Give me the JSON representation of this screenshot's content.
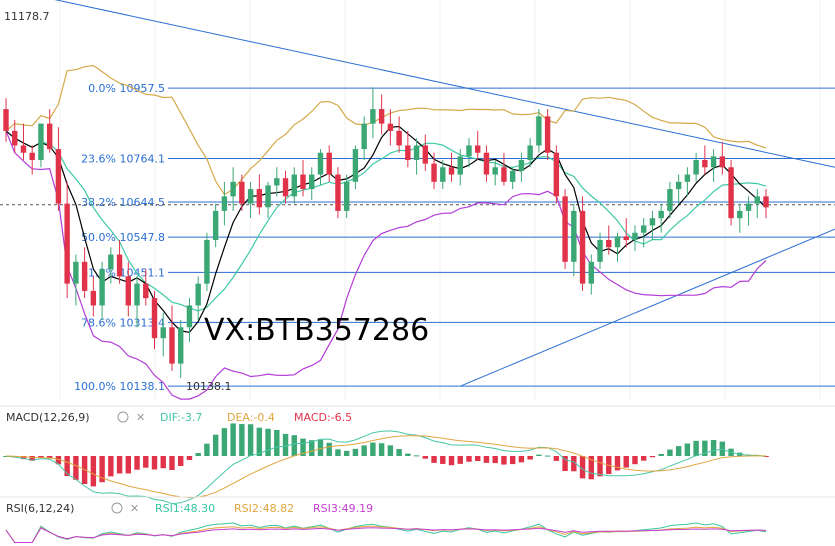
{
  "chart_data": {
    "type": "candlestick",
    "price_range": [
      10100,
      11200
    ],
    "top_price_label": "11178.7",
    "low_price_label": "10138.1",
    "fib_levels": [
      {
        "label": "0.0% 10957.5",
        "price": 10957.5
      },
      {
        "label": "23.6% 10764.1",
        "price": 10764.1
      },
      {
        "label": "38.2% 10644.5",
        "price": 10644.5
      },
      {
        "label": "50.0% 10547.8",
        "price": 10547.8
      },
      {
        "label": "61.8% 10451.1",
        "price": 10451.1
      },
      {
        "label": "78.6% 10313.4",
        "price": 10313.4
      },
      {
        "label": "100.0% 10138.1",
        "price": 10138.1
      }
    ],
    "current_price_dashed": 10637,
    "trendlines": [
      {
        "p1": [
          0,
          11230
        ],
        "p2": [
          160,
          10740
        ]
      },
      {
        "p1": [
          52,
          10138
        ],
        "p2": [
          160,
          10570
        ]
      }
    ],
    "candles_ohlc": [
      [
        10900,
        10930,
        10810,
        10840
      ],
      [
        10840,
        10870,
        10780,
        10800
      ],
      [
        10800,
        10860,
        10760,
        10780
      ],
      [
        10780,
        10800,
        10720,
        10760
      ],
      [
        10760,
        10860,
        10740,
        10860
      ],
      [
        10860,
        10900,
        10780,
        10790
      ],
      [
        10790,
        10850,
        10620,
        10640
      ],
      [
        10640,
        10700,
        10380,
        10420
      ],
      [
        10420,
        10500,
        10360,
        10480
      ],
      [
        10480,
        10520,
        10380,
        10400
      ],
      [
        10400,
        10440,
        10330,
        10360
      ],
      [
        10360,
        10480,
        10320,
        10460
      ],
      [
        10460,
        10520,
        10420,
        10500
      ],
      [
        10500,
        10540,
        10420,
        10440
      ],
      [
        10440,
        10480,
        10330,
        10360
      ],
      [
        10360,
        10440,
        10300,
        10420
      ],
      [
        10420,
        10460,
        10360,
        10380
      ],
      [
        10380,
        10400,
        10240,
        10270
      ],
      [
        10270,
        10340,
        10220,
        10300
      ],
      [
        10300,
        10360,
        10180,
        10200
      ],
      [
        10200,
        10320,
        10160,
        10300
      ],
      [
        10300,
        10380,
        10260,
        10360
      ],
      [
        10360,
        10440,
        10320,
        10420
      ],
      [
        10420,
        10560,
        10400,
        10540
      ],
      [
        10540,
        10640,
        10520,
        10620
      ],
      [
        10620,
        10700,
        10580,
        10660
      ],
      [
        10660,
        10740,
        10620,
        10700
      ],
      [
        10700,
        10720,
        10620,
        10640
      ],
      [
        10640,
        10700,
        10600,
        10680
      ],
      [
        10680,
        10720,
        10610,
        10630
      ],
      [
        10630,
        10700,
        10600,
        10690
      ],
      [
        10690,
        10740,
        10660,
        10710
      ],
      [
        10710,
        10730,
        10640,
        10660
      ],
      [
        10660,
        10740,
        10640,
        10720
      ],
      [
        10720,
        10760,
        10660,
        10680
      ],
      [
        10680,
        10740,
        10650,
        10720
      ],
      [
        10720,
        10790,
        10690,
        10780
      ],
      [
        10780,
        10800,
        10700,
        10720
      ],
      [
        10720,
        10740,
        10600,
        10620
      ],
      [
        10620,
        10720,
        10600,
        10700
      ],
      [
        10700,
        10800,
        10680,
        10790
      ],
      [
        10790,
        10880,
        10760,
        10860
      ],
      [
        10860,
        10960,
        10820,
        10900
      ],
      [
        10900,
        10940,
        10830,
        10860
      ],
      [
        10860,
        10900,
        10800,
        10840
      ],
      [
        10840,
        10880,
        10780,
        10800
      ],
      [
        10800,
        10840,
        10740,
        10760
      ],
      [
        10760,
        10820,
        10720,
        10800
      ],
      [
        10800,
        10830,
        10730,
        10750
      ],
      [
        10750,
        10780,
        10680,
        10700
      ],
      [
        10700,
        10760,
        10680,
        10740
      ],
      [
        10740,
        10780,
        10700,
        10720
      ],
      [
        10720,
        10790,
        10690,
        10770
      ],
      [
        10770,
        10820,
        10740,
        10800
      ],
      [
        10800,
        10840,
        10760,
        10780
      ],
      [
        10780,
        10800,
        10700,
        10720
      ],
      [
        10720,
        10760,
        10690,
        10740
      ],
      [
        10740,
        10780,
        10690,
        10700
      ],
      [
        10700,
        10740,
        10680,
        10730
      ],
      [
        10730,
        10780,
        10700,
        10760
      ],
      [
        10760,
        10820,
        10740,
        10800
      ],
      [
        10800,
        10900,
        10780,
        10880
      ],
      [
        10880,
        10900,
        10760,
        10780
      ],
      [
        10780,
        10800,
        10640,
        10660
      ],
      [
        10660,
        10680,
        10460,
        10480
      ],
      [
        10480,
        10640,
        10440,
        10620
      ],
      [
        10620,
        10660,
        10400,
        10420
      ],
      [
        10420,
        10500,
        10390,
        10480
      ],
      [
        10480,
        10560,
        10460,
        10540
      ],
      [
        10540,
        10580,
        10500,
        10520
      ],
      [
        10520,
        10560,
        10480,
        10550
      ],
      [
        10550,
        10600,
        10520,
        10540
      ],
      [
        10540,
        10580,
        10510,
        10560
      ],
      [
        10560,
        10600,
        10520,
        10580
      ],
      [
        10580,
        10620,
        10540,
        10600
      ],
      [
        10600,
        10640,
        10560,
        10620
      ],
      [
        10620,
        10700,
        10600,
        10680
      ],
      [
        10680,
        10720,
        10640,
        10700
      ],
      [
        10700,
        10740,
        10660,
        10720
      ],
      [
        10720,
        10780,
        10700,
        10760
      ],
      [
        10760,
        10800,
        10720,
        10740
      ],
      [
        10740,
        10790,
        10700,
        10770
      ],
      [
        10770,
        10810,
        10720,
        10740
      ],
      [
        10740,
        10760,
        10580,
        10600
      ],
      [
        10600,
        10640,
        10560,
        10620
      ],
      [
        10620,
        10660,
        10580,
        10640
      ],
      [
        10640,
        10680,
        10600,
        10660
      ],
      [
        10660,
        10680,
        10600,
        10630
      ]
    ],
    "indicators": {
      "macd": {
        "label": "MACD(12,26,9)",
        "dif": "DIF:-3.7",
        "dea": "DEA:-0.4",
        "macd": "MACD:-6.5"
      },
      "rsi": {
        "label": "RSI(6,12,24)",
        "rsi1": "RSI1:48.30",
        "rsi2": "RSI2:48.82",
        "rsi3": "RSI3:49.19"
      }
    },
    "colors": {
      "up": "#3aa775",
      "down": "#e0334a",
      "fib": "#2a6fd1",
      "boll_upper": "#d4a94a",
      "boll_lower": "#b23cd6",
      "ma_short": "#000000",
      "ma_mid": "#3ec9a7",
      "macd_dif": "#48c6a8",
      "macd_dea": "#e0a640",
      "rsi1": "#39c6a0",
      "rsi2": "#e0a640",
      "rsi3": "#c53ed1"
    }
  },
  "watermark": "VX:BTB357286"
}
